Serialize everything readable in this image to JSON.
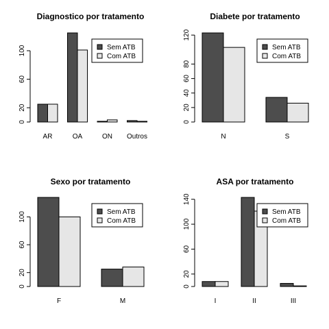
{
  "legend": {
    "labels": [
      "Sem ATB",
      "Com ATB"
    ],
    "colors": [
      "#4d4d4d",
      "#e6e6e6"
    ]
  },
  "chart_data": [
    {
      "type": "bar",
      "title": "Diagnostico por tratamento",
      "categories": [
        "AR",
        "OA",
        "ON",
        "Outros"
      ],
      "series": [
        {
          "name": "Sem ATB",
          "values": [
            25,
            125,
            1,
            2
          ]
        },
        {
          "name": "Com ATB",
          "values": [
            25,
            101,
            3,
            1
          ]
        }
      ],
      "ylim": [
        0,
        125
      ],
      "yticks": [
        0,
        20,
        60,
        100
      ],
      "legend_position": "top-right"
    },
    {
      "type": "bar",
      "title": "Diabete por tratamento",
      "categories": [
        "N",
        "S"
      ],
      "series": [
        {
          "name": "Sem ATB",
          "values": [
            123,
            34
          ]
        },
        {
          "name": "Com ATB",
          "values": [
            103,
            26
          ]
        }
      ],
      "ylim": [
        0,
        123
      ],
      "yticks": [
        0,
        20,
        40,
        60,
        80,
        120
      ],
      "legend_position": "top-right"
    },
    {
      "type": "bar",
      "title": "Sexo por tratamento",
      "categories": [
        "F",
        "M"
      ],
      "series": [
        {
          "name": "Sem ATB",
          "values": [
            128,
            25
          ]
        },
        {
          "name": "Com ATB",
          "values": [
            100,
            28
          ]
        }
      ],
      "ylim": [
        0,
        128
      ],
      "yticks": [
        0,
        20,
        60,
        100
      ],
      "legend_position": "top-right"
    },
    {
      "type": "bar",
      "title": "ASA por tratamento",
      "categories": [
        "I",
        "II",
        "III"
      ],
      "series": [
        {
          "name": "Sem ATB",
          "values": [
            8,
            143,
            5
          ]
        },
        {
          "name": "Com ATB",
          "values": [
            8,
            121,
            1
          ]
        }
      ],
      "ylim": [
        0,
        143
      ],
      "yticks": [
        0,
        20,
        60,
        100,
        140
      ],
      "legend_position": "top-right"
    }
  ]
}
